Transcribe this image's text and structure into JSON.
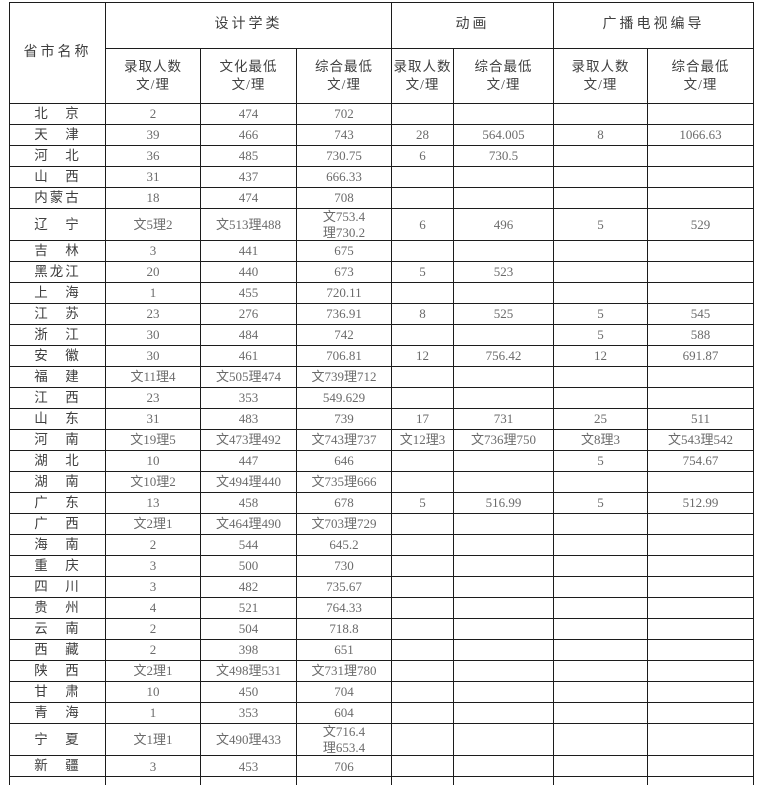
{
  "table": {
    "province_header": "省市名称",
    "groups": [
      {
        "label": "设计学类",
        "sub": [
          "录取人数\n文/理",
          "文化最低\n文/理",
          "综合最低\n文/理"
        ]
      },
      {
        "label": "动画",
        "sub": [
          "录取人数\n文/理",
          "综合最低\n文/理"
        ]
      },
      {
        "label": "广播电视编导",
        "sub": [
          "录取人数\n文/理",
          "综合最低\n文/理"
        ]
      }
    ],
    "colors": {
      "border": "#1c1c1c",
      "header_text": "#3f3f3f",
      "cell_text": "#6b6b6b"
    },
    "rows": [
      {
        "province": "北　京",
        "cells": [
          "2",
          "474",
          "702",
          "",
          "",
          "",
          ""
        ]
      },
      {
        "province": "天　津",
        "cells": [
          "39",
          "466",
          "743",
          "28",
          "564.005",
          "8",
          "1066.63"
        ]
      },
      {
        "province": "河　北",
        "cells": [
          "36",
          "485",
          "730.75",
          "6",
          "730.5",
          "",
          ""
        ]
      },
      {
        "province": "山　西",
        "cells": [
          "31",
          "437",
          "666.33",
          "",
          "",
          "",
          ""
        ]
      },
      {
        "province": "内蒙古",
        "cells": [
          "18",
          "474",
          "708",
          "",
          "",
          "",
          ""
        ]
      },
      {
        "province": "辽　宁",
        "cells": [
          "文5理2",
          "文513理488",
          "文753.4\n理730.2",
          "6",
          "496",
          "5",
          "529"
        ]
      },
      {
        "province": "吉　林",
        "cells": [
          "3",
          "441",
          "675",
          "",
          "",
          "",
          ""
        ]
      },
      {
        "province": "黑龙江",
        "cells": [
          "20",
          "440",
          "673",
          "5",
          "523",
          "",
          ""
        ]
      },
      {
        "province": "上　海",
        "cells": [
          "1",
          "455",
          "720.11",
          "",
          "",
          "",
          ""
        ]
      },
      {
        "province": "江　苏",
        "cells": [
          "23",
          "276",
          "736.91",
          "8",
          "525",
          "5",
          "545"
        ]
      },
      {
        "province": "浙　江",
        "cells": [
          "30",
          "484",
          "742",
          "",
          "",
          "5",
          "588"
        ]
      },
      {
        "province": "安　徽",
        "cells": [
          "30",
          "461",
          "706.81",
          "12",
          "756.42",
          "12",
          "691.87"
        ]
      },
      {
        "province": "福　建",
        "cells": [
          "文11理4",
          "文505理474",
          "文739理712",
          "",
          "",
          "",
          ""
        ]
      },
      {
        "province": "江　西",
        "cells": [
          "23",
          "353",
          "549.629",
          "",
          "",
          "",
          ""
        ]
      },
      {
        "province": "山　东",
        "cells": [
          "31",
          "483",
          "739",
          "17",
          "731",
          "25",
          "511"
        ]
      },
      {
        "province": "河　南",
        "cells": [
          "文19理5",
          "文473理492",
          "文743理737",
          "文12理3",
          "文736理750",
          "文8理3",
          "文543理542"
        ]
      },
      {
        "province": "湖　北",
        "cells": [
          "10",
          "447",
          "646",
          "",
          "",
          "5",
          "754.67"
        ]
      },
      {
        "province": "湖　南",
        "cells": [
          "文10理2",
          "文494理440",
          "文735理666",
          "",
          "",
          "",
          ""
        ]
      },
      {
        "province": "广　东",
        "cells": [
          "13",
          "458",
          "678",
          "5",
          "516.99",
          "5",
          "512.99"
        ]
      },
      {
        "province": "广　西",
        "cells": [
          "文2理1",
          "文464理490",
          "文703理729",
          "",
          "",
          "",
          ""
        ]
      },
      {
        "province": "海　南",
        "cells": [
          "2",
          "544",
          "645.2",
          "",
          "",
          "",
          ""
        ]
      },
      {
        "province": "重　庆",
        "cells": [
          "3",
          "500",
          "730",
          "",
          "",
          "",
          ""
        ]
      },
      {
        "province": "四　川",
        "cells": [
          "3",
          "482",
          "735.67",
          "",
          "",
          "",
          ""
        ]
      },
      {
        "province": "贵　州",
        "cells": [
          "4",
          "521",
          "764.33",
          "",
          "",
          "",
          ""
        ]
      },
      {
        "province": "云　南",
        "cells": [
          "2",
          "504",
          "718.8",
          "",
          "",
          "",
          ""
        ]
      },
      {
        "province": "西　藏",
        "cells": [
          "2",
          "398",
          "651",
          "",
          "",
          "",
          ""
        ]
      },
      {
        "province": "陕　西",
        "cells": [
          "文2理1",
          "文498理531",
          "文731理780",
          "",
          "",
          "",
          ""
        ]
      },
      {
        "province": "甘　肃",
        "cells": [
          "10",
          "450",
          "704",
          "",
          "",
          "",
          ""
        ]
      },
      {
        "province": "青　海",
        "cells": [
          "1",
          "353",
          "604",
          "",
          "",
          "",
          ""
        ]
      },
      {
        "province": "宁　夏",
        "cells": [
          "文1理1",
          "文490理433",
          "文716.4\n理653.4",
          "",
          "",
          "",
          ""
        ]
      },
      {
        "province": "新　疆",
        "cells": [
          "3",
          "453",
          "706",
          "",
          "",
          "",
          ""
        ]
      }
    ]
  }
}
